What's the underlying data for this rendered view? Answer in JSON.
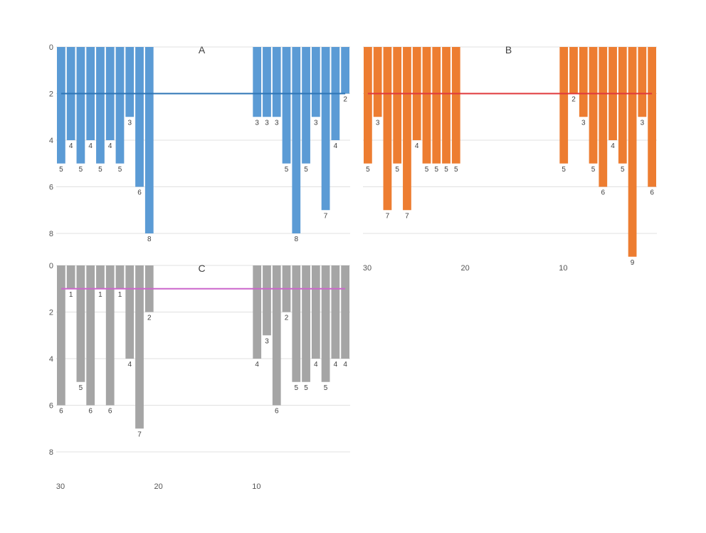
{
  "chart_data": [
    {
      "type": "bar",
      "title": "A",
      "color": "#5b9bd5",
      "reference_line": {
        "value": 2,
        "color": "#2e75b6"
      },
      "y_axis": {
        "ylim": [
          0,
          8
        ],
        "ticks": [
          0,
          2,
          4,
          6,
          8
        ],
        "inverted": true,
        "grid": true
      },
      "x_axis": {
        "range": [
          30,
          1
        ],
        "ticks": [
          30,
          20,
          10
        ],
        "labels_shown": false
      },
      "data": [
        {
          "x": 30,
          "y": 5
        },
        {
          "x": 29,
          "y": 4
        },
        {
          "x": 28,
          "y": 5
        },
        {
          "x": 27,
          "y": 4
        },
        {
          "x": 26,
          "y": 5
        },
        {
          "x": 25,
          "y": 4
        },
        {
          "x": 24,
          "y": 5
        },
        {
          "x": 23,
          "y": 3
        },
        {
          "x": 22,
          "y": 6
        },
        {
          "x": 21,
          "y": 8
        },
        {
          "x": 10,
          "y": 3
        },
        {
          "x": 9,
          "y": 3
        },
        {
          "x": 8,
          "y": 3
        },
        {
          "x": 7,
          "y": 5
        },
        {
          "x": 6,
          "y": 8
        },
        {
          "x": 5,
          "y": 5
        },
        {
          "x": 4,
          "y": 3
        },
        {
          "x": 3,
          "y": 7
        },
        {
          "x": 2,
          "y": 4
        },
        {
          "x": 1,
          "y": 2
        }
      ]
    },
    {
      "type": "bar",
      "title": "B",
      "color": "#ed7d31",
      "reference_line": {
        "value": 2,
        "color": "#e0383b"
      },
      "y_axis": {
        "ylim": [
          0,
          8
        ],
        "ticks": [
          0,
          2,
          4,
          6,
          8
        ],
        "inverted": true,
        "grid": true,
        "labels_shown": false
      },
      "x_axis": {
        "range": [
          30,
          1
        ],
        "ticks": [
          30,
          20,
          10
        ],
        "labels_shown": true
      },
      "data": [
        {
          "x": 30,
          "y": 5
        },
        {
          "x": 29,
          "y": 3
        },
        {
          "x": 28,
          "y": 7
        },
        {
          "x": 27,
          "y": 5
        },
        {
          "x": 26,
          "y": 7
        },
        {
          "x": 25,
          "y": 4
        },
        {
          "x": 24,
          "y": 5
        },
        {
          "x": 23,
          "y": 5
        },
        {
          "x": 22,
          "y": 5
        },
        {
          "x": 21,
          "y": 5
        },
        {
          "x": 10,
          "y": 5
        },
        {
          "x": 9,
          "y": 2
        },
        {
          "x": 8,
          "y": 3
        },
        {
          "x": 7,
          "y": 5
        },
        {
          "x": 6,
          "y": 6
        },
        {
          "x": 5,
          "y": 4
        },
        {
          "x": 4,
          "y": 5
        },
        {
          "x": 3,
          "y": 9
        },
        {
          "x": 2,
          "y": 3
        },
        {
          "x": 1,
          "y": 6
        }
      ]
    },
    {
      "type": "bar",
      "title": "C",
      "color": "#a5a5a5",
      "reference_line": {
        "value": 1,
        "color": "#cc66cc"
      },
      "y_axis": {
        "ylim": [
          0,
          8
        ],
        "ticks": [
          0,
          2,
          4,
          6,
          8
        ],
        "inverted": true,
        "grid": true
      },
      "x_axis": {
        "range": [
          30,
          1
        ],
        "ticks": [
          30,
          20,
          10
        ],
        "labels_shown": true
      },
      "data": [
        {
          "x": 30,
          "y": 6
        },
        {
          "x": 29,
          "y": 1
        },
        {
          "x": 28,
          "y": 5
        },
        {
          "x": 27,
          "y": 6
        },
        {
          "x": 26,
          "y": 1
        },
        {
          "x": 25,
          "y": 6
        },
        {
          "x": 24,
          "y": 1
        },
        {
          "x": 23,
          "y": 4
        },
        {
          "x": 22,
          "y": 7
        },
        {
          "x": 21,
          "y": 2
        },
        {
          "x": 10,
          "y": 4
        },
        {
          "x": 9,
          "y": 3
        },
        {
          "x": 8,
          "y": 6
        },
        {
          "x": 7,
          "y": 2
        },
        {
          "x": 6,
          "y": 5
        },
        {
          "x": 5,
          "y": 5
        },
        {
          "x": 4,
          "y": 4
        },
        {
          "x": 3,
          "y": 5
        },
        {
          "x": 2,
          "y": 4
        },
        {
          "x": 1,
          "y": 4
        }
      ]
    }
  ]
}
